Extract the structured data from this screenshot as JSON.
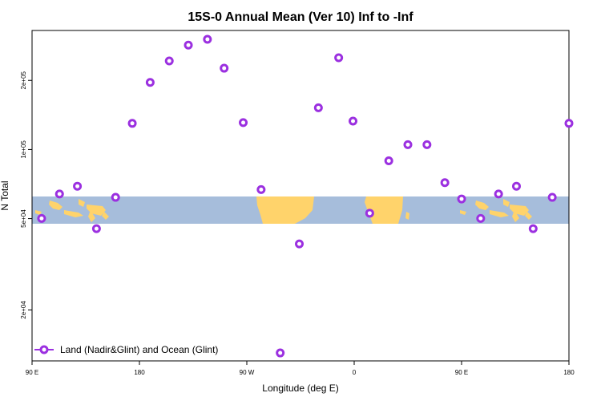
{
  "chart_data": {
    "type": "scatter",
    "title": "15S-0 Annual Mean (Ver 10)   Inf to -Inf",
    "xlabel": "Longitude (deg E)",
    "ylabel": "N Total",
    "x_ticks": [
      {
        "value": 90,
        "label": "90 E"
      },
      {
        "value": 180,
        "label": "180"
      },
      {
        "value": 270,
        "label": "90 W"
      },
      {
        "value": 360,
        "label": "0"
      },
      {
        "value": 450,
        "label": "90 E"
      },
      {
        "value": 540,
        "label": "180"
      }
    ],
    "xlim": [
      90,
      540
    ],
    "y_scale": "log",
    "ylim": [
      12000,
      330000
    ],
    "y_ticks": [
      {
        "value": 20000,
        "label": "2e+04"
      },
      {
        "value": 50000,
        "label": "5e+04"
      },
      {
        "value": 100000,
        "label": "1e+05"
      },
      {
        "value": 200000,
        "label": "2e+05"
      }
    ],
    "legend": {
      "label": "Land (Nadir&Glint) and Ocean (Glint)",
      "position": "bottom-left"
    },
    "series": [
      {
        "name": "Land (Nadir&Glint) and Ocean (Glint)",
        "color": "#9b30e0",
        "points": [
          [
            98,
            50100
          ],
          [
            113,
            64000
          ],
          [
            128,
            69200
          ],
          [
            144,
            45200
          ],
          [
            160,
            61900
          ],
          [
            174,
            130000
          ],
          [
            189,
            196000
          ],
          [
            205,
            243000
          ],
          [
            221,
            285000
          ],
          [
            237,
            302000
          ],
          [
            251,
            226000
          ],
          [
            267,
            131000
          ],
          [
            282,
            66900
          ],
          [
            298,
            13000
          ],
          [
            314,
            38800
          ],
          [
            330,
            152000
          ],
          [
            347,
            251000
          ],
          [
            359,
            133000
          ],
          [
            373,
            52800
          ],
          [
            389,
            89300
          ],
          [
            405,
            105000
          ],
          [
            421,
            105000
          ],
          [
            436,
            71700
          ],
          [
            450,
            60900
          ],
          [
            466,
            50100
          ],
          [
            481,
            64000
          ],
          [
            496,
            69200
          ],
          [
            510,
            45200
          ],
          [
            526,
            61900
          ],
          [
            540,
            130000
          ]
        ]
      }
    ],
    "map_background": {
      "description_band_latitude": "15S-0",
      "ocean_color": "#a6bddb",
      "land_color": "#ffd36b"
    }
  }
}
